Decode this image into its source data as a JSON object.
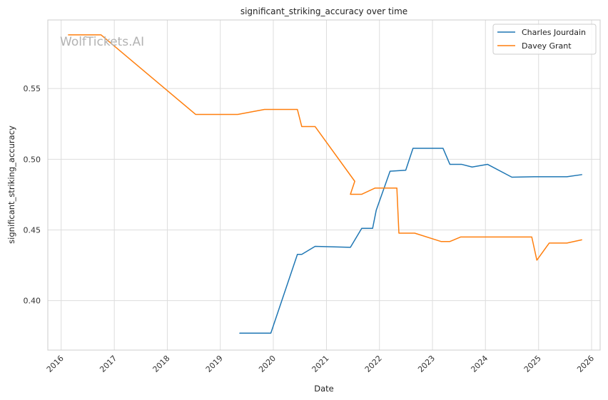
{
  "watermark": "WolfTickets.AI",
  "chart_data": {
    "type": "line",
    "title": "significant_striking_accuracy over time",
    "xlabel": "Date",
    "ylabel": "significant_striking_accuracy",
    "x_axis": "date",
    "xlim": [
      "2015-10-01",
      "2026-03-01"
    ],
    "ylim": [
      0.365,
      0.5985
    ],
    "x_ticks": [
      "2016",
      "2017",
      "2018",
      "2019",
      "2020",
      "2021",
      "2022",
      "2023",
      "2024",
      "2025",
      "2026"
    ],
    "y_ticks": [
      0.4,
      0.45,
      0.5,
      0.55
    ],
    "y_tick_labels": [
      "0.40",
      "0.45",
      "0.50",
      "0.55"
    ],
    "grid": true,
    "legend_position": "top-right",
    "series": [
      {
        "name": "Charles Jourdain",
        "color": "#1f77b4",
        "points": [
          [
            "2019-05-15",
            0.377
          ],
          [
            "2019-12-15",
            0.377
          ],
          [
            "2020-06-15",
            0.4327
          ],
          [
            "2020-07-15",
            0.4327
          ],
          [
            "2020-10-15",
            0.4384
          ],
          [
            "2021-06-15",
            0.4377
          ],
          [
            "2021-09-01",
            0.4511
          ],
          [
            "2021-11-15",
            0.4511
          ],
          [
            "2021-12-10",
            0.464
          ],
          [
            "2022-03-15",
            0.4915
          ],
          [
            "2022-07-01",
            0.4922
          ],
          [
            "2022-08-20",
            0.5077
          ],
          [
            "2023-03-15",
            0.5077
          ],
          [
            "2023-05-01",
            0.4964
          ],
          [
            "2023-07-20",
            0.4964
          ],
          [
            "2023-10-01",
            0.4945
          ],
          [
            "2024-01-15",
            0.4964
          ],
          [
            "2024-07-01",
            0.4873
          ],
          [
            "2024-12-01",
            0.4876
          ],
          [
            "2025-07-15",
            0.4876
          ],
          [
            "2025-10-25",
            0.4891
          ]
        ]
      },
      {
        "name": "Davey Grant",
        "color": "#ff7f0e",
        "points": [
          [
            "2016-02-20",
            0.588
          ],
          [
            "2016-10-01",
            0.588
          ],
          [
            "2018-07-15",
            0.5317
          ],
          [
            "2019-05-01",
            0.5317
          ],
          [
            "2019-11-01",
            0.5352
          ],
          [
            "2020-06-15",
            0.5352
          ],
          [
            "2020-07-15",
            0.5231
          ],
          [
            "2020-10-15",
            0.5231
          ],
          [
            "2021-07-15",
            0.4844
          ],
          [
            "2021-06-15",
            0.4752
          ],
          [
            "2021-09-01",
            0.4752
          ],
          [
            "2021-12-01",
            0.4796
          ],
          [
            "2022-05-01",
            0.4796
          ],
          [
            "2022-05-15",
            0.4477
          ],
          [
            "2022-09-01",
            0.4477
          ],
          [
            "2023-03-01",
            0.4418
          ],
          [
            "2023-05-01",
            0.4418
          ],
          [
            "2023-07-15",
            0.445
          ],
          [
            "2024-11-15",
            0.445
          ],
          [
            "2024-12-20",
            0.4286
          ],
          [
            "2025-03-15",
            0.4407
          ],
          [
            "2025-07-15",
            0.4407
          ],
          [
            "2025-10-25",
            0.443
          ]
        ]
      }
    ]
  }
}
